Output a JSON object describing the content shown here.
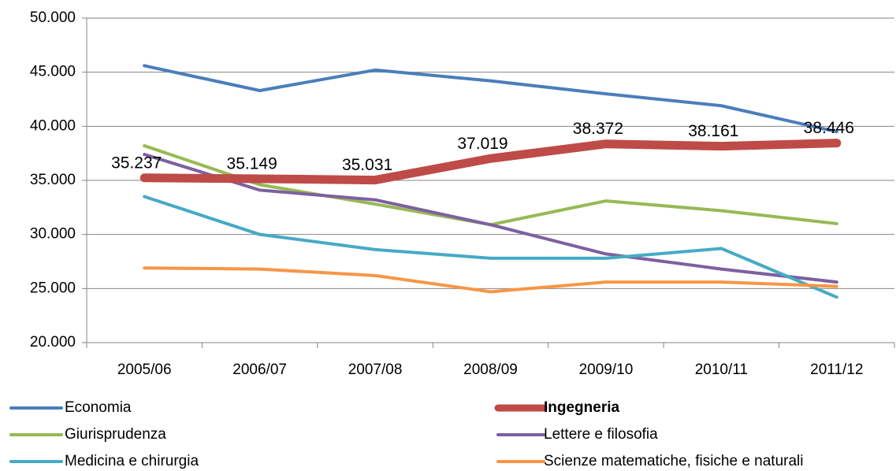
{
  "chart_data": {
    "type": "line",
    "categories": [
      "2005/06",
      "2006/07",
      "2007/08",
      "2008/09",
      "2009/10",
      "2010/11",
      "2011/12"
    ],
    "series": [
      {
        "name": "Economia",
        "color": "#4a7ebb",
        "values": [
          45600,
          43300,
          45200,
          44200,
          43000,
          41900,
          39500
        ]
      },
      {
        "name": "Ingegneria",
        "color": "#be4b48",
        "emphasis": true,
        "values": [
          35237,
          35149,
          35031,
          37019,
          38372,
          38161,
          38446
        ],
        "value_labels": [
          "35.237",
          "35.149",
          "35.031",
          "37.019",
          "38.372",
          "38.161",
          "38.446"
        ]
      },
      {
        "name": "Giurisprudenza",
        "color": "#98b954",
        "values": [
          38200,
          34600,
          32800,
          30900,
          33100,
          32200,
          31000
        ]
      },
      {
        "name": "Lettere e filosofia",
        "color": "#7d60a0",
        "values": [
          37400,
          34100,
          33200,
          30900,
          28200,
          26800,
          25600
        ]
      },
      {
        "name": "Medicina e chirurgia",
        "color": "#46aac5",
        "values": [
          33500,
          30000,
          28600,
          27800,
          27800,
          28700,
          24200
        ]
      },
      {
        "name": "Scienze matematiche, fisiche e naturali",
        "color": "#f79646",
        "values": [
          26900,
          26800,
          26200,
          24700,
          25600,
          25600,
          25200
        ]
      }
    ],
    "ylim": [
      20000,
      50000
    ],
    "yticks": [
      {
        "value": 20000,
        "label": "20.000"
      },
      {
        "value": 25000,
        "label": "25.000"
      },
      {
        "value": 30000,
        "label": "30.000"
      },
      {
        "value": 35000,
        "label": "35.000"
      },
      {
        "value": 40000,
        "label": "40.000"
      },
      {
        "value": 45000,
        "label": "45.000"
      },
      {
        "value": 50000,
        "label": "50.000"
      }
    ],
    "grid": true,
    "legend": "bottom"
  }
}
